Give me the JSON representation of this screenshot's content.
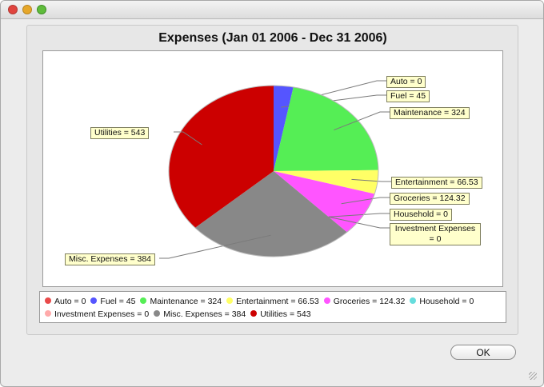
{
  "window": {
    "title": ""
  },
  "chart_data": {
    "type": "pie",
    "title": "Expenses (Jan 01 2006 - Dec 31 2006)",
    "slices": [
      {
        "label": "Auto = 0",
        "name": "Auto",
        "value": 0,
        "color": "#e94a4a"
      },
      {
        "label": "Fuel = 45",
        "name": "Fuel",
        "value": 45,
        "color": "#5555ff"
      },
      {
        "label": "Maintenance = 324",
        "name": "Maintenance",
        "value": 324,
        "color": "#55ee55"
      },
      {
        "label": "Entertainment = 66.53",
        "name": "Entertainment",
        "value": 66.53,
        "color": "#ffff66"
      },
      {
        "label": "Groceries = 124.32",
        "name": "Groceries",
        "value": 124.32,
        "color": "#ff55ff"
      },
      {
        "label": "Household = 0",
        "name": "Household",
        "value": 0,
        "color": "#66dddd"
      },
      {
        "label": "Investment Expenses = 0",
        "name": "Investment Expenses",
        "value": 0,
        "color": "#ffaaaa"
      },
      {
        "label": "Misc. Expenses = 384",
        "name": "Misc. Expenses",
        "value": 384,
        "color": "#888888"
      },
      {
        "label": "Utilities = 543",
        "name": "Utilities",
        "value": 543,
        "color": "#cc0000"
      }
    ],
    "legend_placement": "bottom"
  },
  "buttons": {
    "ok_label": "OK"
  }
}
